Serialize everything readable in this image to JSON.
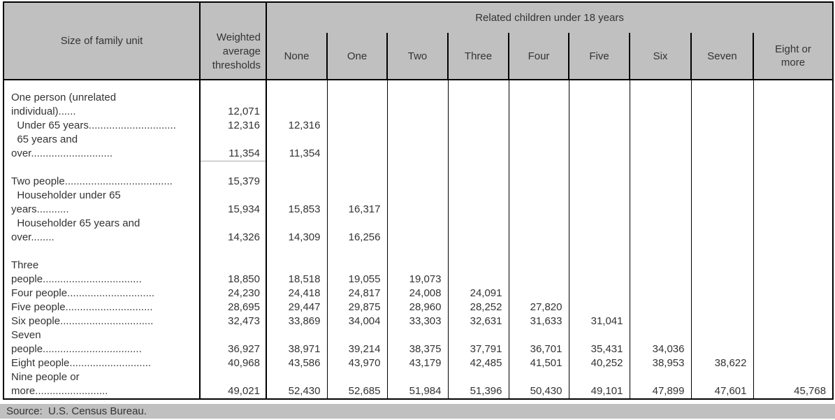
{
  "header": {
    "size_of_family_unit": "Size of family unit",
    "weighted_average_thresholds": "Weighted average thresholds",
    "related_children_group": "Related children under 18 years",
    "children_cols": [
      "None",
      "One",
      "Two",
      "Three",
      "Four",
      "Five",
      "Six",
      "Seven",
      "Eight or\nmore"
    ]
  },
  "groups": [
    {
      "rows": [
        {
          "label_lines": [
            "One person (unrelated",
            "individual)......"
          ],
          "values": [
            "12,071",
            "",
            "",
            "",
            "",
            "",
            "",
            "",
            "",
            ""
          ],
          "wa_underline": false
        },
        {
          "label_lines": [
            "  Under 65 years.............................."
          ],
          "values": [
            "12,316",
            "12,316",
            "",
            "",
            "",
            "",
            "",
            "",
            "",
            ""
          ],
          "wa_underline": false
        },
        {
          "label_lines": [
            "  65 years and",
            "over............................"
          ],
          "values": [
            "11,354",
            "11,354",
            "",
            "",
            "",
            "",
            "",
            "",
            "",
            ""
          ],
          "wa_underline": true
        }
      ]
    },
    {
      "rows": [
        {
          "label_lines": [
            "Two people....................................."
          ],
          "values": [
            "15,379",
            "",
            "",
            "",
            "",
            "",
            "",
            "",
            "",
            ""
          ],
          "wa_underline": false
        },
        {
          "label_lines": [
            "  Householder under 65",
            "years..........."
          ],
          "values": [
            "15,934",
            "15,853",
            "16,317",
            "",
            "",
            "",
            "",
            "",
            "",
            ""
          ],
          "wa_underline": false
        },
        {
          "label_lines": [
            "  Householder 65 years and",
            "over........"
          ],
          "values": [
            "14,326",
            "14,309",
            "16,256",
            "",
            "",
            "",
            "",
            "",
            "",
            ""
          ],
          "wa_underline": false
        }
      ]
    },
    {
      "rows": [
        {
          "label_lines": [
            "Three",
            "people.................................."
          ],
          "values": [
            "18,850",
            "18,518",
            "19,055",
            "19,073",
            "",
            "",
            "",
            "",
            "",
            ""
          ],
          "wa_underline": false
        },
        {
          "label_lines": [
            "Four people.............................."
          ],
          "values": [
            "24,230",
            "24,418",
            "24,817",
            "24,008",
            "24,091",
            "",
            "",
            "",
            "",
            ""
          ],
          "wa_underline": false
        },
        {
          "label_lines": [
            "Five people.............................."
          ],
          "values": [
            "28,695",
            "29,447",
            "29,875",
            "28,960",
            "28,252",
            "27,820",
            "",
            "",
            "",
            ""
          ],
          "wa_underline": false
        },
        {
          "label_lines": [
            "Six people................................"
          ],
          "values": [
            "32,473",
            "33,869",
            "34,004",
            "33,303",
            "32,631",
            "31,633",
            "31,041",
            "",
            "",
            ""
          ],
          "wa_underline": false
        },
        {
          "label_lines": [
            "Seven",
            "people.................................."
          ],
          "values": [
            "36,927",
            "38,971",
            "39,214",
            "38,375",
            "37,791",
            "36,701",
            "35,431",
            "34,036",
            "",
            ""
          ],
          "wa_underline": false
        },
        {
          "label_lines": [
            "Eight people............................"
          ],
          "values": [
            "40,968",
            "43,586",
            "43,970",
            "43,179",
            "42,485",
            "41,501",
            "40,252",
            "38,953",
            "38,622",
            ""
          ],
          "wa_underline": false
        },
        {
          "label_lines": [
            "Nine people or",
            "more........................."
          ],
          "values": [
            "49,021",
            "52,430",
            "52,685",
            "51,984",
            "51,396",
            "50,430",
            "49,101",
            "47,899",
            "47,601",
            "45,768"
          ],
          "wa_underline": false
        }
      ]
    }
  ],
  "source": "Source:  U.S. Census Bureau.",
  "colors": {
    "header_bg": "#c0c0c0",
    "source_bg": "#c0c0c0",
    "border": "#000000",
    "text": "#333333",
    "wa_underline": "#ababab"
  }
}
